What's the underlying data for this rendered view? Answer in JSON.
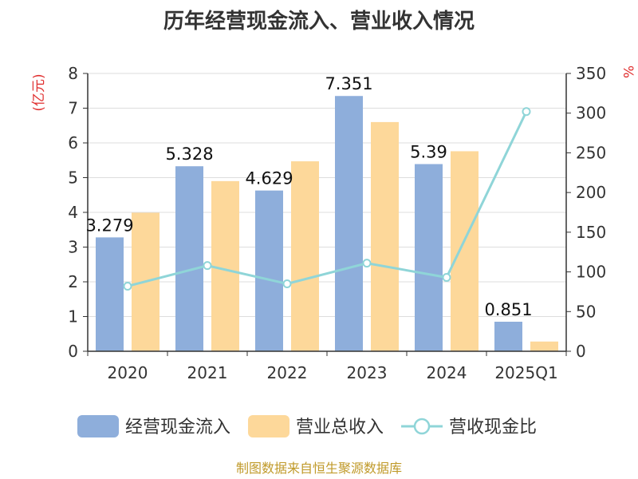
{
  "chart_data": {
    "type": "bar",
    "title": "历年经营现金流入、营业收入情况",
    "categories": [
      "2020",
      "2021",
      "2022",
      "2023",
      "2024",
      "2025Q1"
    ],
    "y_left": {
      "unit": "(亿元)",
      "ylim": [
        0,
        8
      ],
      "ticks": [
        0,
        1,
        2,
        3,
        4,
        5,
        6,
        7,
        8
      ]
    },
    "y_right": {
      "unit": "%",
      "ylim": [
        0,
        350
      ],
      "ticks": [
        0,
        50,
        100,
        150,
        200,
        250,
        300,
        350
      ]
    },
    "series": [
      {
        "name": "经营现金流入",
        "type": "bar",
        "axis": "left",
        "color": "#8eaedb",
        "values": [
          3.279,
          5.328,
          4.629,
          7.351,
          5.39,
          0.851
        ],
        "labels": [
          "3.279",
          "5.328",
          "4.629",
          "7.351",
          "5.39",
          "0.851"
        ]
      },
      {
        "name": "营业总收入",
        "type": "bar",
        "axis": "left",
        "color": "#fdd89a",
        "values": [
          3.99,
          4.9,
          5.47,
          6.6,
          5.76,
          0.28
        ]
      },
      {
        "name": "营收现金比",
        "type": "line",
        "axis": "right",
        "color": "#8fd5d8",
        "values": [
          82,
          108,
          85,
          111,
          93,
          302
        ]
      }
    ],
    "grid": true,
    "legend_position": "bottom",
    "source": "制图数据来自恒生聚源数据库"
  }
}
